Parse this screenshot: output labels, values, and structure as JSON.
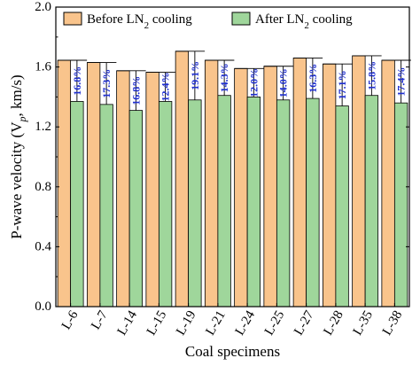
{
  "chart_data": {
    "type": "bar",
    "xlabel": "Coal specimens",
    "ylabel": "P-wave velocity (V",
    "ylabel_sub": "p",
    "ylabel_suffix": ", km/s)",
    "ylim": [
      0.0,
      2.0
    ],
    "yticks": [
      "0.0",
      "0.4",
      "0.8",
      "1.2",
      "1.6",
      "2.0"
    ],
    "yticks_values": [
      0.0,
      0.4,
      0.8,
      1.2,
      1.6,
      2.0
    ],
    "legend_position": "top",
    "categories": [
      "L-6",
      "L-7",
      "L-14",
      "L-15",
      "L-19",
      "L-21",
      "L-24",
      "L-25",
      "L-27",
      "L-28",
      "L-35",
      "L-38"
    ],
    "series": [
      {
        "name": "Before LN",
        "name_sub": "2",
        "name_suffix": " cooling",
        "color": "#f9c48c",
        "values": [
          1.645,
          1.63,
          1.575,
          1.565,
          1.705,
          1.645,
          1.59,
          1.605,
          1.66,
          1.62,
          1.675,
          1.645
        ]
      },
      {
        "name": "After LN",
        "name_sub": "2",
        "name_suffix": " cooling",
        "color": "#9fd69b",
        "values": [
          1.37,
          1.35,
          1.31,
          1.37,
          1.38,
          1.41,
          1.4,
          1.38,
          1.39,
          1.34,
          1.41,
          1.36
        ]
      }
    ],
    "annotations": [
      "16.8%",
      "17.3%",
      "16.8%",
      "12.4%",
      "19.1%",
      "14.3%",
      "12.0%",
      "14.0%",
      "16.3%",
      "17.1%",
      "15.8%",
      "17.4%"
    ],
    "annotation_color": "#1f2fd0",
    "grid": false
  }
}
